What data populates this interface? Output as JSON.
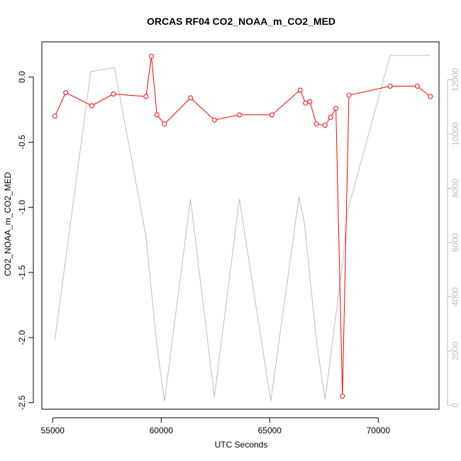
{
  "chart_data": {
    "type": "line",
    "title": "ORCAS RF04 CO2_NOAA_m_CO2_MED",
    "xlabel": "UTC Seconds",
    "ylabel": "CO2_NOAA_m_CO2_MED",
    "xlim": [
      54500,
      72800
    ],
    "ylim": [
      -2.55,
      0.27
    ],
    "y2lim": [
      -150,
      13400
    ],
    "x_ticks": [
      55000,
      60000,
      65000,
      70000
    ],
    "y_ticks": [
      -2.5,
      -2.0,
      -1.5,
      -1.0,
      -0.5,
      0.0
    ],
    "y_tick_labels": [
      "-2.5",
      "-2.0",
      "-1.5",
      "-1.0",
      "-0.5",
      "0.0"
    ],
    "y2_ticks": [
      0,
      2000,
      4000,
      6000,
      8000,
      10000,
      12000
    ],
    "series": [
      {
        "axis": "left",
        "color": "#ff0000",
        "marker": "open-circle",
        "points": [
          [
            55100,
            -0.3
          ],
          [
            55600,
            -0.12
          ],
          [
            56800,
            -0.22
          ],
          [
            57800,
            -0.13
          ],
          [
            59300,
            -0.15
          ],
          [
            59550,
            0.16
          ],
          [
            59800,
            -0.29
          ],
          [
            60150,
            -0.36
          ],
          [
            61350,
            -0.16
          ],
          [
            62450,
            -0.33
          ],
          [
            63600,
            -0.29
          ],
          [
            65100,
            -0.29
          ],
          [
            66400,
            -0.1
          ],
          [
            66650,
            -0.2
          ],
          [
            66850,
            -0.19
          ],
          [
            67150,
            -0.36
          ],
          [
            67550,
            -0.37
          ],
          [
            67800,
            -0.31
          ],
          [
            68050,
            -0.24
          ],
          [
            68350,
            -2.45
          ],
          [
            68650,
            -0.14
          ],
          [
            70550,
            -0.07
          ],
          [
            71800,
            -0.07
          ],
          [
            72400,
            -0.15
          ]
        ]
      },
      {
        "axis": "right",
        "color": "#bdbdbd",
        "points": [
          [
            55100,
            2400
          ],
          [
            56750,
            12300
          ],
          [
            57850,
            12450
          ],
          [
            59300,
            6200
          ],
          [
            59800,
            2200
          ],
          [
            60150,
            150
          ],
          [
            61350,
            7600
          ],
          [
            62450,
            300
          ],
          [
            63600,
            7600
          ],
          [
            65050,
            150
          ],
          [
            66350,
            7700
          ],
          [
            66600,
            6700
          ],
          [
            67150,
            2400
          ],
          [
            67550,
            200
          ],
          [
            68350,
            5200
          ],
          [
            68600,
            7200
          ],
          [
            70550,
            12900
          ],
          [
            72400,
            12900
          ]
        ]
      }
    ]
  }
}
